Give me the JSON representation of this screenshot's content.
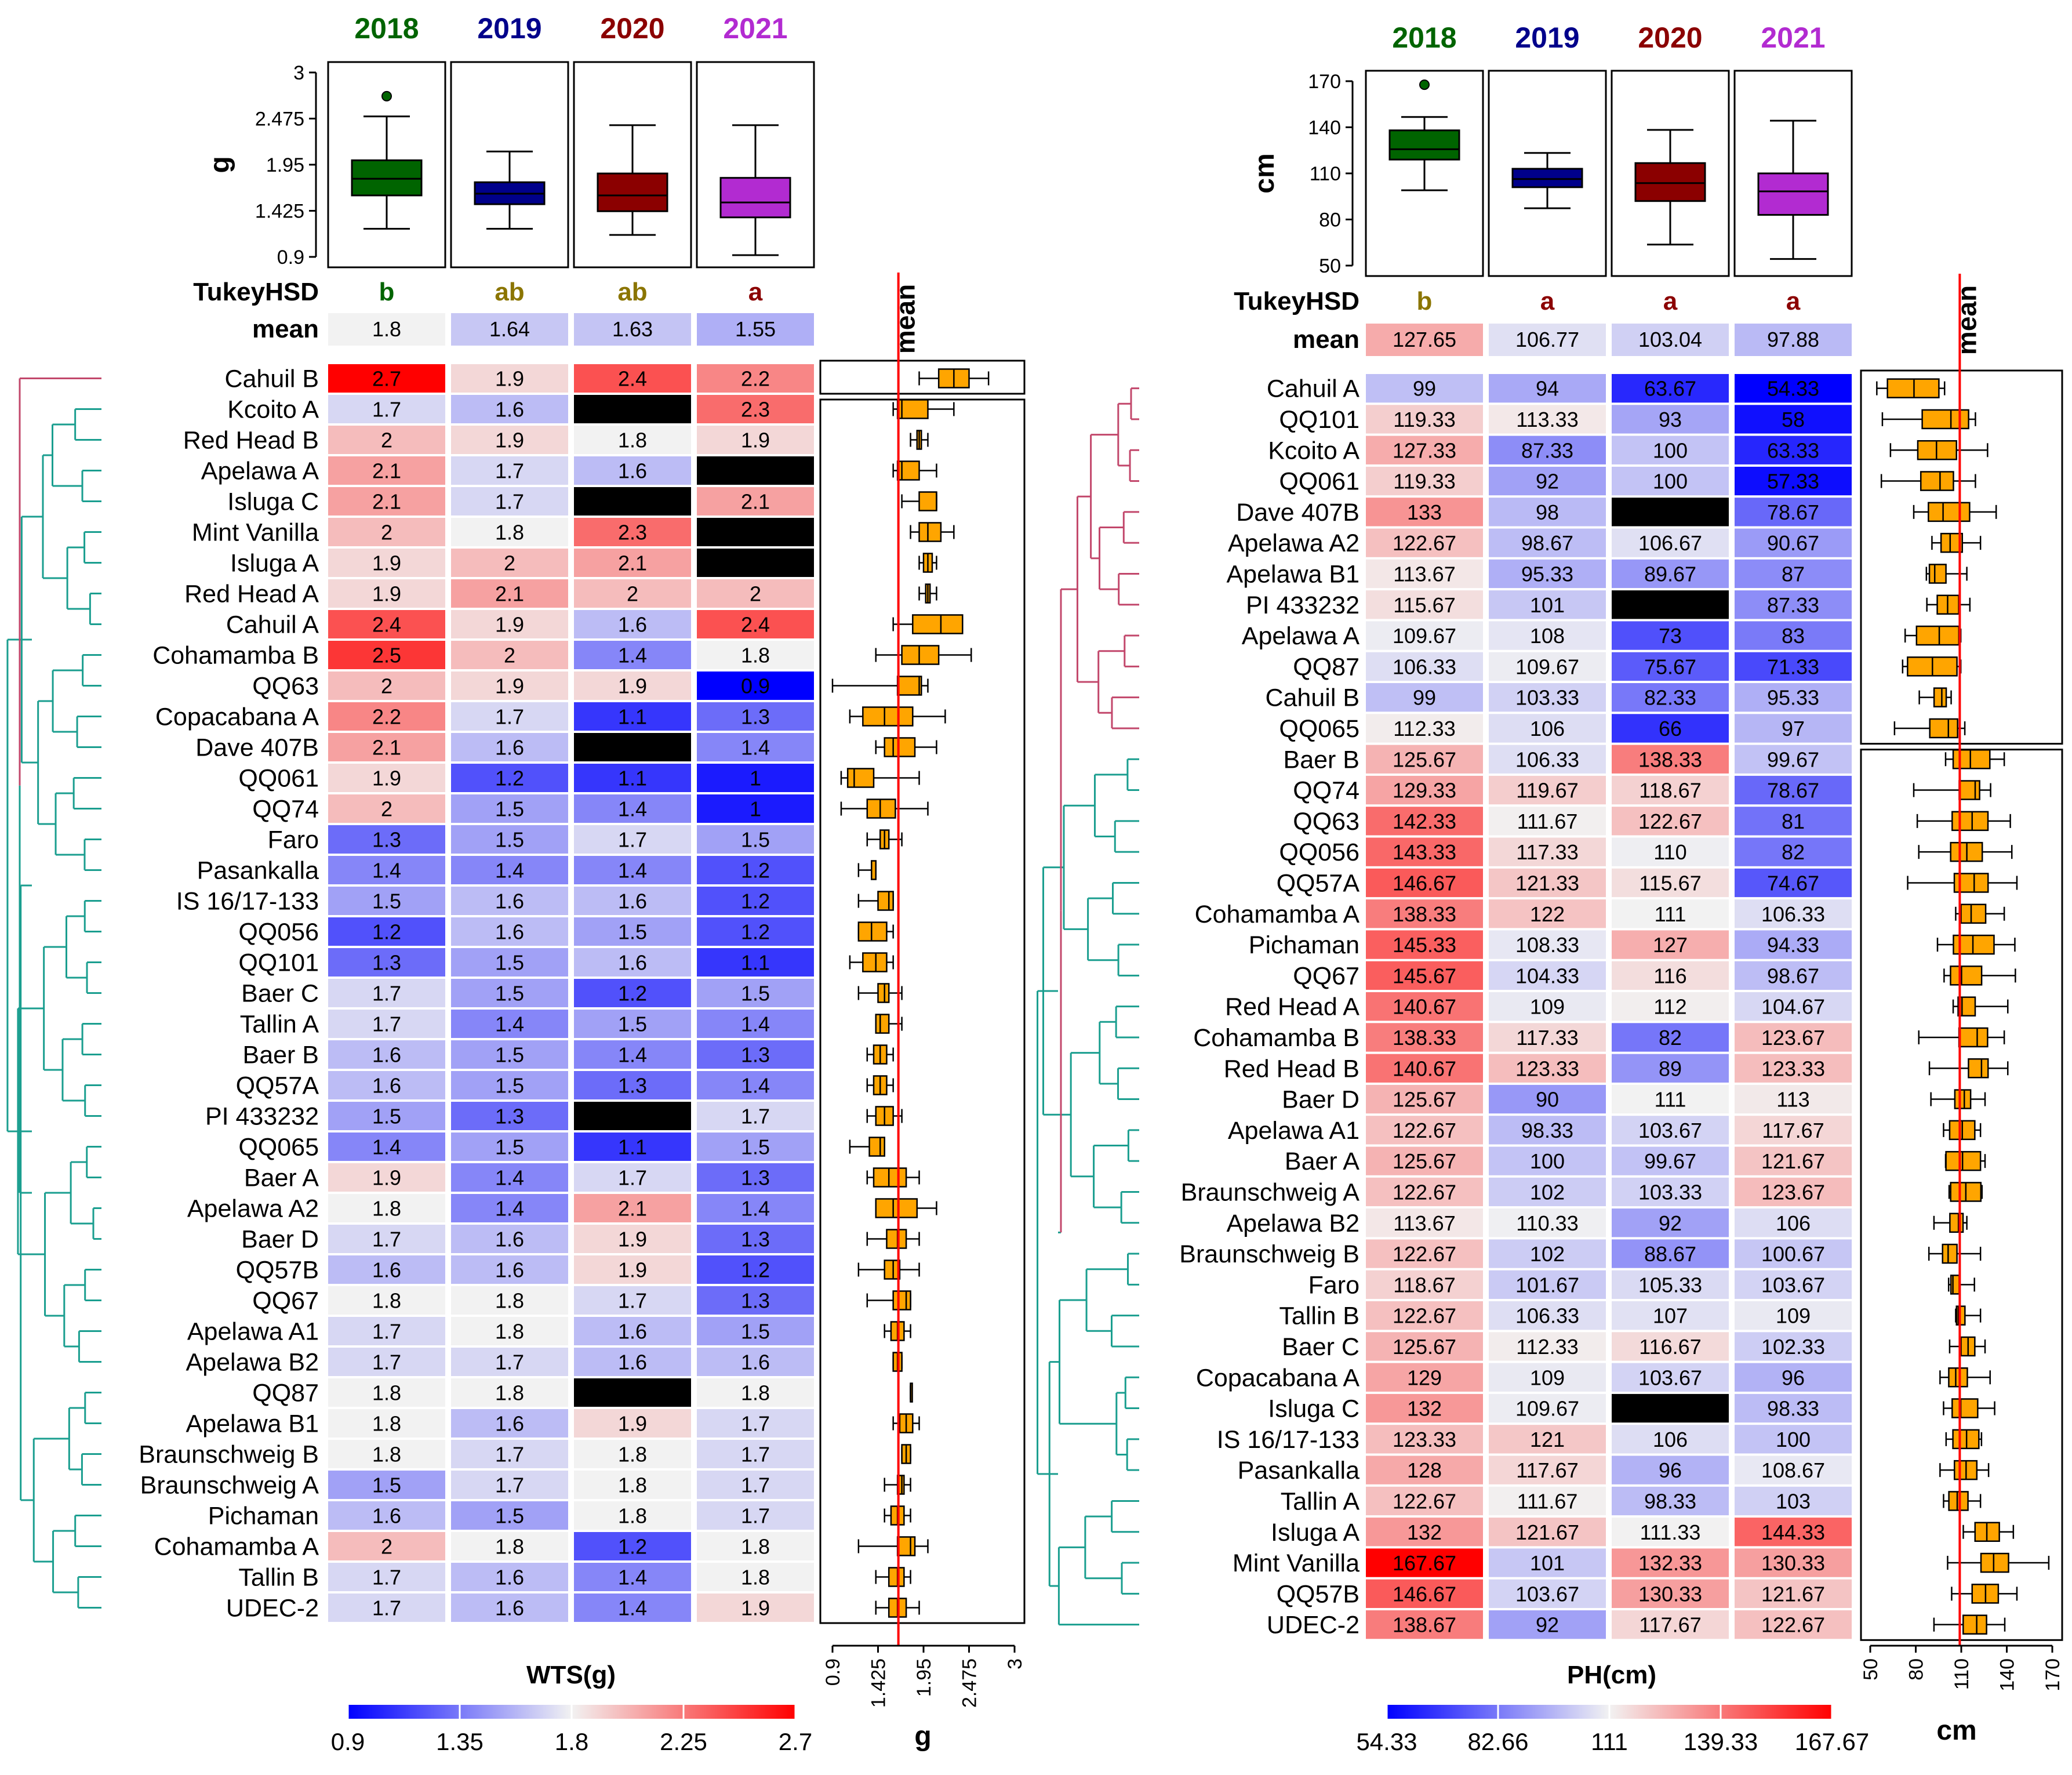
{
  "panel_left": {
    "trait_label": "WTS(g)",
    "unit_label": "g",
    "tukey_label": "TukeyHSD",
    "mean_label": "mean",
    "mean_line_title": "mean",
    "colorbar_ticks": [
      "0.9",
      "1.35",
      "1.8",
      "2.25",
      "2.7"
    ]
  },
  "panel_right": {
    "trait_label": "PH(cm)",
    "unit_label": "cm",
    "tukey_label": "TukeyHSD",
    "mean_label": "mean",
    "mean_line_title": "mean",
    "colorbar_ticks": [
      "54.33",
      "82.66",
      "111",
      "139.33",
      "167.67"
    ]
  },
  "chart_data": [
    {
      "type": "heatmap",
      "title": "WTS(g)",
      "years": [
        "2018",
        "2019",
        "2020",
        "2021"
      ],
      "year_colors": [
        "#006400",
        "#00008B",
        "#8B0000",
        "#B22BD1"
      ],
      "tukey": [
        "b",
        "ab",
        "ab",
        "a"
      ],
      "tukey_colors": [
        "#006400",
        "#8B7500",
        "#8B7500",
        "#8B0000"
      ],
      "means": [
        "1.8",
        "1.64",
        "1.63",
        "1.55"
      ],
      "year_boxplot_yaxis": {
        "label": "g",
        "ticks": [
          "3",
          "2.475",
          "1.95",
          "1.425",
          "0.9"
        ],
        "range": [
          0.9,
          3
        ]
      },
      "year_boxplots": [
        {
          "min": 1.22,
          "q1": 1.6,
          "median": 1.79,
          "q3": 2.0,
          "max": 2.5,
          "outliers": [
            2.73
          ]
        },
        {
          "min": 1.22,
          "q1": 1.5,
          "median": 1.62,
          "q3": 1.75,
          "max": 2.1,
          "outliers": []
        },
        {
          "min": 1.15,
          "q1": 1.42,
          "median": 1.6,
          "q3": 1.85,
          "max": 2.4,
          "outliers": []
        },
        {
          "min": 0.92,
          "q1": 1.35,
          "median": 1.52,
          "q3": 1.8,
          "max": 2.4,
          "outliers": []
        }
      ],
      "color_scale": {
        "min": 0.9,
        "mid": 1.8,
        "max": 2.7
      },
      "genotypes": [
        "Cahuil B",
        "Kcoito A",
        "Red Head B",
        "Apelawa A",
        "Isluga C",
        "Mint Vanilla",
        "Isluga A",
        "Red Head A",
        "Cahuil A",
        "Cohamamba B",
        "QQ63",
        "Copacabana A",
        "Dave 407B",
        "QQ061",
        "QQ74",
        "Faro",
        "Pasankalla",
        "IS 16/17-133",
        "QQ056",
        "QQ101",
        "Baer C",
        "Tallin A",
        "Baer B",
        "QQ57A",
        "PI 433232",
        "QQ065",
        "Baer A",
        "Apelawa A2",
        "Baer D",
        "QQ57B",
        "QQ67",
        "Apelawa A1",
        "Apelawa B2",
        "QQ87",
        "Apelawa B1",
        "Braunschweig B",
        "Braunschweig A",
        "Pichaman",
        "Cohamamba A",
        "Tallin B",
        "UDEC-2"
      ],
      "values": [
        [
          "2.7",
          "1.9",
          "2.4",
          "2.2"
        ],
        [
          "1.7",
          "1.6",
          null,
          "2.3"
        ],
        [
          "2",
          "1.9",
          "1.8",
          "1.9"
        ],
        [
          "2.1",
          "1.7",
          "1.6",
          null
        ],
        [
          "2.1",
          "1.7",
          null,
          "2.1"
        ],
        [
          "2",
          "1.8",
          "2.3",
          null
        ],
        [
          "1.9",
          "2",
          "2.1",
          null
        ],
        [
          "1.9",
          "2.1",
          "2",
          "2"
        ],
        [
          "2.4",
          "1.9",
          "1.6",
          "2.4"
        ],
        [
          "2.5",
          "2",
          "1.4",
          "1.8"
        ],
        [
          "2",
          "1.9",
          "1.9",
          "0.9"
        ],
        [
          "2.2",
          "1.7",
          "1.1",
          "1.3"
        ],
        [
          "2.1",
          "1.6",
          null,
          "1.4"
        ],
        [
          "1.9",
          "1.2",
          "1.1",
          "1"
        ],
        [
          "2",
          "1.5",
          "1.4",
          "1"
        ],
        [
          "1.3",
          "1.5",
          "1.7",
          "1.5"
        ],
        [
          "1.4",
          "1.4",
          "1.4",
          "1.2"
        ],
        [
          "1.5",
          "1.6",
          "1.6",
          "1.2"
        ],
        [
          "1.2",
          "1.6",
          "1.5",
          "1.2"
        ],
        [
          "1.3",
          "1.5",
          "1.6",
          "1.1"
        ],
        [
          "1.7",
          "1.5",
          "1.2",
          "1.5"
        ],
        [
          "1.7",
          "1.4",
          "1.5",
          "1.4"
        ],
        [
          "1.6",
          "1.5",
          "1.4",
          "1.3"
        ],
        [
          "1.6",
          "1.5",
          "1.3",
          "1.4"
        ],
        [
          "1.5",
          "1.3",
          null,
          "1.7"
        ],
        [
          "1.4",
          "1.5",
          "1.1",
          "1.5"
        ],
        [
          "1.9",
          "1.4",
          "1.7",
          "1.3"
        ],
        [
          "1.8",
          "1.4",
          "2.1",
          "1.4"
        ],
        [
          "1.7",
          "1.6",
          "1.9",
          "1.3"
        ],
        [
          "1.6",
          "1.6",
          "1.9",
          "1.2"
        ],
        [
          "1.8",
          "1.8",
          "1.7",
          "1.3"
        ],
        [
          "1.7",
          "1.8",
          "1.6",
          "1.5"
        ],
        [
          "1.7",
          "1.7",
          "1.6",
          "1.6"
        ],
        [
          "1.8",
          "1.8",
          null,
          "1.8"
        ],
        [
          "1.8",
          "1.6",
          "1.9",
          "1.7"
        ],
        [
          "1.8",
          "1.7",
          "1.8",
          "1.7"
        ],
        [
          "1.5",
          "1.7",
          "1.8",
          "1.7"
        ],
        [
          "1.6",
          "1.5",
          "1.8",
          "1.7"
        ],
        [
          "2",
          "1.8",
          "1.2",
          "1.8"
        ],
        [
          "1.7",
          "1.6",
          "1.4",
          "1.8"
        ],
        [
          "1.7",
          "1.6",
          "1.4",
          "1.9"
        ]
      ],
      "genotype_boxplot_axis": {
        "ticks": [
          "0.9",
          "1.425",
          "1.95",
          "2.475",
          "3"
        ],
        "range": [
          0.9,
          3
        ],
        "mean": 1.66
      },
      "dendrogram_clusters": [
        {
          "color": "#C2476B",
          "size": 1
        },
        {
          "color": "#1A9E8F",
          "size": 40
        }
      ]
    },
    {
      "type": "heatmap",
      "title": "PH(cm)",
      "years": [
        "2018",
        "2019",
        "2020",
        "2021"
      ],
      "year_colors": [
        "#006400",
        "#00008B",
        "#8B0000",
        "#B22BD1"
      ],
      "tukey": [
        "b",
        "a",
        "a",
        "a"
      ],
      "tukey_colors": [
        "#8B7500",
        "#8B0000",
        "#8B0000",
        "#8B0000"
      ],
      "means": [
        "127.65",
        "106.77",
        "103.04",
        "97.88"
      ],
      "year_boxplot_yaxis": {
        "label": "cm",
        "ticks": [
          "170",
          "140",
          "110",
          "80",
          "50"
        ],
        "range": [
          50,
          170
        ]
      },
      "year_boxplots": [
        {
          "min": 99,
          "q1": 119,
          "median": 125.7,
          "q3": 138,
          "max": 146.7,
          "outliers": [
            167.7
          ]
        },
        {
          "min": 87.3,
          "q1": 101,
          "median": 106.3,
          "q3": 113,
          "max": 123.3,
          "outliers": []
        },
        {
          "min": 63.7,
          "q1": 92,
          "median": 103.7,
          "q3": 116.7,
          "max": 138.3,
          "outliers": []
        },
        {
          "min": 54.3,
          "q1": 83,
          "median": 98.3,
          "q3": 110,
          "max": 144.3,
          "outliers": []
        }
      ],
      "color_scale": {
        "min": 54.33,
        "mid": 111,
        "max": 167.67
      },
      "genotypes": [
        "Cahuil A",
        "QQ101",
        "Kcoito A",
        "QQ061",
        "Dave 407B",
        "Apelawa A2",
        "Apelawa B1",
        "PI 433232",
        "Apelawa A",
        "QQ87",
        "Cahuil B",
        "QQ065",
        "Baer B",
        "QQ74",
        "QQ63",
        "QQ056",
        "QQ57A",
        "Cohamamba A",
        "Pichaman",
        "QQ67",
        "Red Head A",
        "Cohamamba B",
        "Red Head B",
        "Baer D",
        "Apelawa A1",
        "Baer A",
        "Braunschweig A",
        "Apelawa B2",
        "Braunschweig B",
        "Faro",
        "Tallin B",
        "Baer C",
        "Copacabana A",
        "Isluga C",
        "IS 16/17-133",
        "Pasankalla",
        "Tallin A",
        "Isluga A",
        "Mint Vanilla",
        "QQ57B",
        "UDEC-2"
      ],
      "values": [
        [
          "99",
          "94",
          "63.67",
          "54.33"
        ],
        [
          "119.33",
          "113.33",
          "93",
          "58"
        ],
        [
          "127.33",
          "87.33",
          "100",
          "63.33"
        ],
        [
          "119.33",
          "92",
          "100",
          "57.33"
        ],
        [
          "133",
          "98",
          null,
          "78.67"
        ],
        [
          "122.67",
          "98.67",
          "106.67",
          "90.67"
        ],
        [
          "113.67",
          "95.33",
          "89.67",
          "87"
        ],
        [
          "115.67",
          "101",
          null,
          "87.33"
        ],
        [
          "109.67",
          "108",
          "73",
          "83"
        ],
        [
          "106.33",
          "109.67",
          "75.67",
          "71.33"
        ],
        [
          "99",
          "103.33",
          "82.33",
          "95.33"
        ],
        [
          "112.33",
          "106",
          "66",
          "97"
        ],
        [
          "125.67",
          "106.33",
          "138.33",
          "99.67"
        ],
        [
          "129.33",
          "119.67",
          "118.67",
          "78.67"
        ],
        [
          "142.33",
          "111.67",
          "122.67",
          "81"
        ],
        [
          "143.33",
          "117.33",
          "110",
          "82"
        ],
        [
          "146.67",
          "121.33",
          "115.67",
          "74.67"
        ],
        [
          "138.33",
          "122",
          "111",
          "106.33"
        ],
        [
          "145.33",
          "108.33",
          "127",
          "94.33"
        ],
        [
          "145.67",
          "104.33",
          "116",
          "98.67"
        ],
        [
          "140.67",
          "109",
          "112",
          "104.67"
        ],
        [
          "138.33",
          "117.33",
          "82",
          "123.67"
        ],
        [
          "140.67",
          "123.33",
          "89",
          "123.33"
        ],
        [
          "125.67",
          "90",
          "111",
          "113"
        ],
        [
          "122.67",
          "98.33",
          "103.67",
          "117.67"
        ],
        [
          "125.67",
          "100",
          "99.67",
          "121.67"
        ],
        [
          "122.67",
          "102",
          "103.33",
          "123.67"
        ],
        [
          "113.67",
          "110.33",
          "92",
          "106"
        ],
        [
          "122.67",
          "102",
          "88.67",
          "100.67"
        ],
        [
          "118.67",
          "101.67",
          "105.33",
          "103.67"
        ],
        [
          "122.67",
          "106.33",
          "107",
          "109"
        ],
        [
          "125.67",
          "112.33",
          "116.67",
          "102.33"
        ],
        [
          "129",
          "109",
          "103.67",
          "96"
        ],
        [
          "132",
          "109.67",
          null,
          "98.33"
        ],
        [
          "123.33",
          "121",
          "106",
          "100"
        ],
        [
          "128",
          "117.67",
          "96",
          "108.67"
        ],
        [
          "122.67",
          "111.67",
          "98.33",
          "103"
        ],
        [
          "132",
          "121.67",
          "111.33",
          "144.33"
        ],
        [
          "167.67",
          "101",
          "132.33",
          "130.33"
        ],
        [
          "146.67",
          "103.67",
          "130.33",
          "121.67"
        ],
        [
          "138.67",
          "92",
          "117.67",
          "122.67"
        ]
      ],
      "genotype_boxplot_axis": {
        "ticks": [
          "50",
          "80",
          "110",
          "140",
          "170"
        ],
        "range": [
          50,
          170
        ],
        "mean": 109
      },
      "dendrogram_clusters": [
        {
          "color": "#C2476B",
          "size": 12
        },
        {
          "color": "#1A9E8F",
          "size": 29
        }
      ]
    }
  ]
}
